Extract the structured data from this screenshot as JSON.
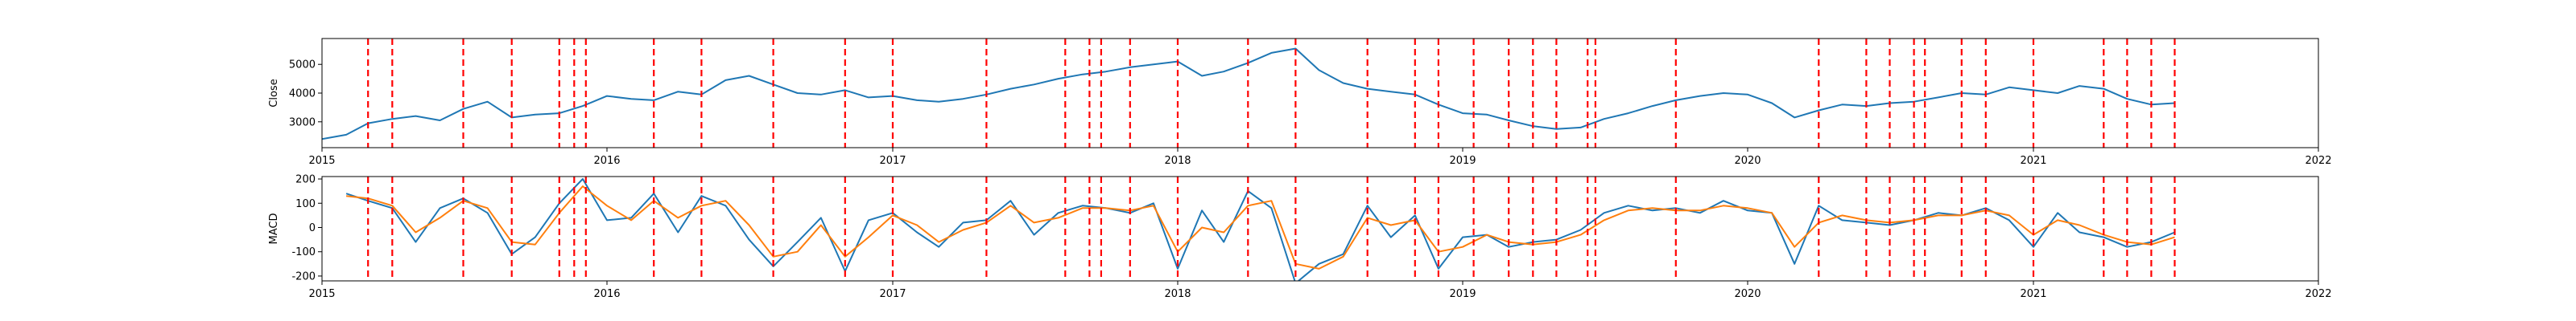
{
  "chart_data": [
    {
      "type": "line",
      "ylabel": "Close",
      "xlim": [
        "2015-01-01",
        "2022-01-01"
      ],
      "ylim": [
        2100,
        5900
      ],
      "x_ticks": [
        {
          "date": "2015-01-01",
          "label": "2015"
        },
        {
          "date": "2016-01-01",
          "label": "2016"
        },
        {
          "date": "2017-01-01",
          "label": "2017"
        },
        {
          "date": "2018-01-01",
          "label": "2018"
        },
        {
          "date": "2019-01-01",
          "label": "2019"
        },
        {
          "date": "2020-01-01",
          "label": "2020"
        },
        {
          "date": "2021-01-01",
          "label": "2021"
        },
        {
          "date": "2022-01-01",
          "label": "2022"
        }
      ],
      "y_ticks": [
        3000,
        4000,
        5000
      ],
      "series": [
        {
          "color": "#1f77b4",
          "x": [
            "2015-01-01",
            "2015-02-01",
            "2015-03-01",
            "2015-04-01",
            "2015-05-01",
            "2015-06-01",
            "2015-07-01",
            "2015-08-01",
            "2015-09-01",
            "2015-10-01",
            "2015-11-01",
            "2015-12-01",
            "2016-01-01",
            "2016-02-01",
            "2016-03-01",
            "2016-04-01",
            "2016-05-01",
            "2016-06-01",
            "2016-07-01",
            "2016-08-01",
            "2016-09-01",
            "2016-10-01",
            "2016-11-01",
            "2016-12-01",
            "2017-01-01",
            "2017-02-01",
            "2017-03-01",
            "2017-04-01",
            "2017-05-01",
            "2017-06-01",
            "2017-07-01",
            "2017-08-01",
            "2017-09-01",
            "2017-10-01",
            "2017-11-01",
            "2017-12-01",
            "2018-01-01",
            "2018-02-01",
            "2018-03-01",
            "2018-04-01",
            "2018-05-01",
            "2018-06-01",
            "2018-07-01",
            "2018-08-01",
            "2018-09-01",
            "2018-10-01",
            "2018-11-01",
            "2018-12-01",
            "2019-01-01",
            "2019-02-01",
            "2019-03-01",
            "2019-04-01",
            "2019-05-01",
            "2019-06-01",
            "2019-07-01",
            "2019-08-01",
            "2019-09-01",
            "2019-10-01",
            "2019-11-01",
            "2019-12-01",
            "2020-01-01",
            "2020-02-01",
            "2020-03-01",
            "2020-04-01",
            "2020-05-01",
            "2020-06-01",
            "2020-07-01",
            "2020-08-01",
            "2020-09-01",
            "2020-10-01",
            "2020-11-01",
            "2020-12-01",
            "2021-01-01",
            "2021-02-01",
            "2021-03-01",
            "2021-04-01",
            "2021-05-01",
            "2021-06-01",
            "2021-07-01"
          ],
          "y": [
            2400,
            2550,
            2950,
            3100,
            3200,
            3050,
            3450,
            3700,
            3150,
            3250,
            3300,
            3550,
            3900,
            3800,
            3750,
            4050,
            3950,
            4450,
            4600,
            4300,
            4000,
            3950,
            4100,
            3850,
            3900,
            3750,
            3700,
            3800,
            3950,
            4150,
            4300,
            4500,
            4650,
            4750,
            4900,
            5000,
            5100,
            4600,
            4750,
            5050,
            5400,
            5550,
            4800,
            4350,
            4150,
            4050,
            3950,
            3600,
            3300,
            3250,
            3050,
            2850,
            2750,
            2800,
            3100,
            3300,
            3550,
            3750,
            3900,
            4000,
            3950,
            3650,
            3150,
            3400,
            3600,
            3550,
            3650,
            3700,
            3850,
            4000,
            3950,
            4200,
            4100,
            4000,
            4250,
            4150,
            3800,
            3600,
            3650
          ]
        }
      ],
      "vlines": {
        "color": "#ff0000",
        "dates": [
          "2015-03-01",
          "2015-04-01",
          "2015-07-01",
          "2015-09-01",
          "2015-11-01",
          "2015-11-20",
          "2015-12-05",
          "2016-03-01",
          "2016-05-01",
          "2016-08-01",
          "2016-11-01",
          "2017-01-01",
          "2017-05-01",
          "2017-08-10",
          "2017-09-10",
          "2017-09-25",
          "2017-11-01",
          "2018-01-01",
          "2018-04-01",
          "2018-06-01",
          "2018-09-01",
          "2018-11-01",
          "2018-12-01",
          "2019-01-15",
          "2019-03-01",
          "2019-04-01",
          "2019-05-01",
          "2019-06-10",
          "2019-06-20",
          "2019-10-01",
          "2020-04-01",
          "2020-06-01",
          "2020-07-01",
          "2020-08-01",
          "2020-08-15",
          "2020-10-01",
          "2020-11-01",
          "2021-01-01",
          "2021-04-01",
          "2021-05-01",
          "2021-06-01",
          "2021-07-01"
        ]
      }
    },
    {
      "type": "line",
      "ylabel": "MACD",
      "xlim": [
        "2015-01-01",
        "2022-01-01"
      ],
      "ylim": [
        -220,
        210
      ],
      "x_ticks": [
        {
          "date": "2015-01-01",
          "label": "2015"
        },
        {
          "date": "2016-01-01",
          "label": "2016"
        },
        {
          "date": "2017-01-01",
          "label": "2017"
        },
        {
          "date": "2018-01-01",
          "label": "2018"
        },
        {
          "date": "2019-01-01",
          "label": "2019"
        },
        {
          "date": "2020-01-01",
          "label": "2020"
        },
        {
          "date": "2021-01-01",
          "label": "2021"
        },
        {
          "date": "2022-01-01",
          "label": "2022"
        }
      ],
      "y_ticks": [
        -200,
        -100,
        0,
        100,
        200
      ],
      "series": [
        {
          "color": "#1f77b4",
          "x": [
            "2015-02-01",
            "2015-03-01",
            "2015-04-01",
            "2015-05-01",
            "2015-06-01",
            "2015-07-01",
            "2015-08-01",
            "2015-09-01",
            "2015-10-01",
            "2015-11-01",
            "2015-12-01",
            "2016-01-01",
            "2016-02-01",
            "2016-03-01",
            "2016-04-01",
            "2016-05-01",
            "2016-06-01",
            "2016-07-01",
            "2016-08-01",
            "2016-09-01",
            "2016-10-01",
            "2016-11-01",
            "2016-12-01",
            "2017-01-01",
            "2017-02-01",
            "2017-03-01",
            "2017-04-01",
            "2017-05-01",
            "2017-06-01",
            "2017-07-01",
            "2017-08-01",
            "2017-09-01",
            "2017-10-01",
            "2017-11-01",
            "2017-12-01",
            "2018-01-01",
            "2018-02-01",
            "2018-03-01",
            "2018-04-01",
            "2018-05-01",
            "2018-06-01",
            "2018-07-01",
            "2018-08-01",
            "2018-09-01",
            "2018-10-01",
            "2018-11-01",
            "2018-12-01",
            "2019-01-01",
            "2019-02-01",
            "2019-03-01",
            "2019-04-01",
            "2019-05-01",
            "2019-06-01",
            "2019-07-01",
            "2019-08-01",
            "2019-09-01",
            "2019-10-01",
            "2019-11-01",
            "2019-12-01",
            "2020-01-01",
            "2020-02-01",
            "2020-03-01",
            "2020-04-01",
            "2020-05-01",
            "2020-06-01",
            "2020-07-01",
            "2020-08-01",
            "2020-09-01",
            "2020-10-01",
            "2020-11-01",
            "2020-12-01",
            "2021-01-01",
            "2021-02-01",
            "2021-03-01",
            "2021-04-01",
            "2021-05-01",
            "2021-06-01",
            "2021-07-01"
          ],
          "y": [
            140,
            110,
            80,
            -60,
            80,
            120,
            60,
            -110,
            -40,
            100,
            200,
            30,
            40,
            140,
            -20,
            130,
            90,
            -50,
            -160,
            -60,
            40,
            -180,
            30,
            60,
            -20,
            -80,
            20,
            30,
            110,
            -30,
            60,
            90,
            80,
            60,
            100,
            -170,
            70,
            -60,
            150,
            80,
            -230,
            -150,
            -110,
            90,
            -40,
            50,
            -170,
            -40,
            -30,
            -80,
            -60,
            -50,
            -10,
            60,
            90,
            70,
            80,
            60,
            110,
            70,
            60,
            -150,
            90,
            30,
            20,
            10,
            30,
            60,
            50,
            80,
            30,
            -80,
            60,
            -20,
            -40,
            -80,
            -60,
            -20
          ]
        },
        {
          "color": "#ff7f0e",
          "x": [
            "2015-02-01",
            "2015-03-01",
            "2015-04-01",
            "2015-05-01",
            "2015-06-01",
            "2015-07-01",
            "2015-08-01",
            "2015-09-01",
            "2015-10-01",
            "2015-11-01",
            "2015-12-01",
            "2016-01-01",
            "2016-02-01",
            "2016-03-01",
            "2016-04-01",
            "2016-05-01",
            "2016-06-01",
            "2016-07-01",
            "2016-08-01",
            "2016-09-01",
            "2016-10-01",
            "2016-11-01",
            "2016-12-01",
            "2017-01-01",
            "2017-02-01",
            "2017-03-01",
            "2017-04-01",
            "2017-05-01",
            "2017-06-01",
            "2017-07-01",
            "2017-08-01",
            "2017-09-01",
            "2017-10-01",
            "2017-11-01",
            "2017-12-01",
            "2018-01-01",
            "2018-02-01",
            "2018-03-01",
            "2018-04-01",
            "2018-05-01",
            "2018-06-01",
            "2018-07-01",
            "2018-08-01",
            "2018-09-01",
            "2018-10-01",
            "2018-11-01",
            "2018-12-01",
            "2019-01-01",
            "2019-02-01",
            "2019-03-01",
            "2019-04-01",
            "2019-05-01",
            "2019-06-01",
            "2019-07-01",
            "2019-08-01",
            "2019-09-01",
            "2019-10-01",
            "2019-11-01",
            "2019-12-01",
            "2020-01-01",
            "2020-02-01",
            "2020-03-01",
            "2020-04-01",
            "2020-05-01",
            "2020-06-01",
            "2020-07-01",
            "2020-08-01",
            "2020-09-01",
            "2020-10-01",
            "2020-11-01",
            "2020-12-01",
            "2021-01-01",
            "2021-02-01",
            "2021-03-01",
            "2021-04-01",
            "2021-05-01",
            "2021-06-01",
            "2021-07-01"
          ],
          "y": [
            130,
            120,
            90,
            -20,
            40,
            110,
            80,
            -60,
            -70,
            60,
            170,
            90,
            30,
            110,
            40,
            90,
            110,
            10,
            -120,
            -100,
            10,
            -120,
            -40,
            50,
            10,
            -60,
            -10,
            20,
            90,
            20,
            40,
            80,
            80,
            70,
            90,
            -100,
            0,
            -20,
            90,
            110,
            -150,
            -170,
            -120,
            40,
            10,
            30,
            -100,
            -80,
            -30,
            -60,
            -70,
            -60,
            -30,
            30,
            70,
            80,
            70,
            70,
            90,
            80,
            60,
            -80,
            20,
            50,
            30,
            20,
            30,
            50,
            50,
            70,
            50,
            -30,
            30,
            10,
            -30,
            -60,
            -70,
            -40
          ]
        }
      ],
      "vlines": {
        "color": "#ff0000",
        "dates": [
          "2015-03-01",
          "2015-04-01",
          "2015-07-01",
          "2015-09-01",
          "2015-11-01",
          "2015-11-20",
          "2015-12-05",
          "2016-03-01",
          "2016-05-01",
          "2016-08-01",
          "2016-11-01",
          "2017-01-01",
          "2017-05-01",
          "2017-08-10",
          "2017-09-10",
          "2017-09-25",
          "2017-11-01",
          "2018-01-01",
          "2018-04-01",
          "2018-06-01",
          "2018-09-01",
          "2018-11-01",
          "2018-12-01",
          "2019-01-15",
          "2019-03-01",
          "2019-04-01",
          "2019-05-01",
          "2019-06-10",
          "2019-06-20",
          "2019-10-01",
          "2020-04-01",
          "2020-06-01",
          "2020-07-01",
          "2020-08-01",
          "2020-08-15",
          "2020-10-01",
          "2020-11-01",
          "2021-01-01",
          "2021-04-01",
          "2021-05-01",
          "2021-06-01",
          "2021-07-01"
        ]
      }
    }
  ]
}
